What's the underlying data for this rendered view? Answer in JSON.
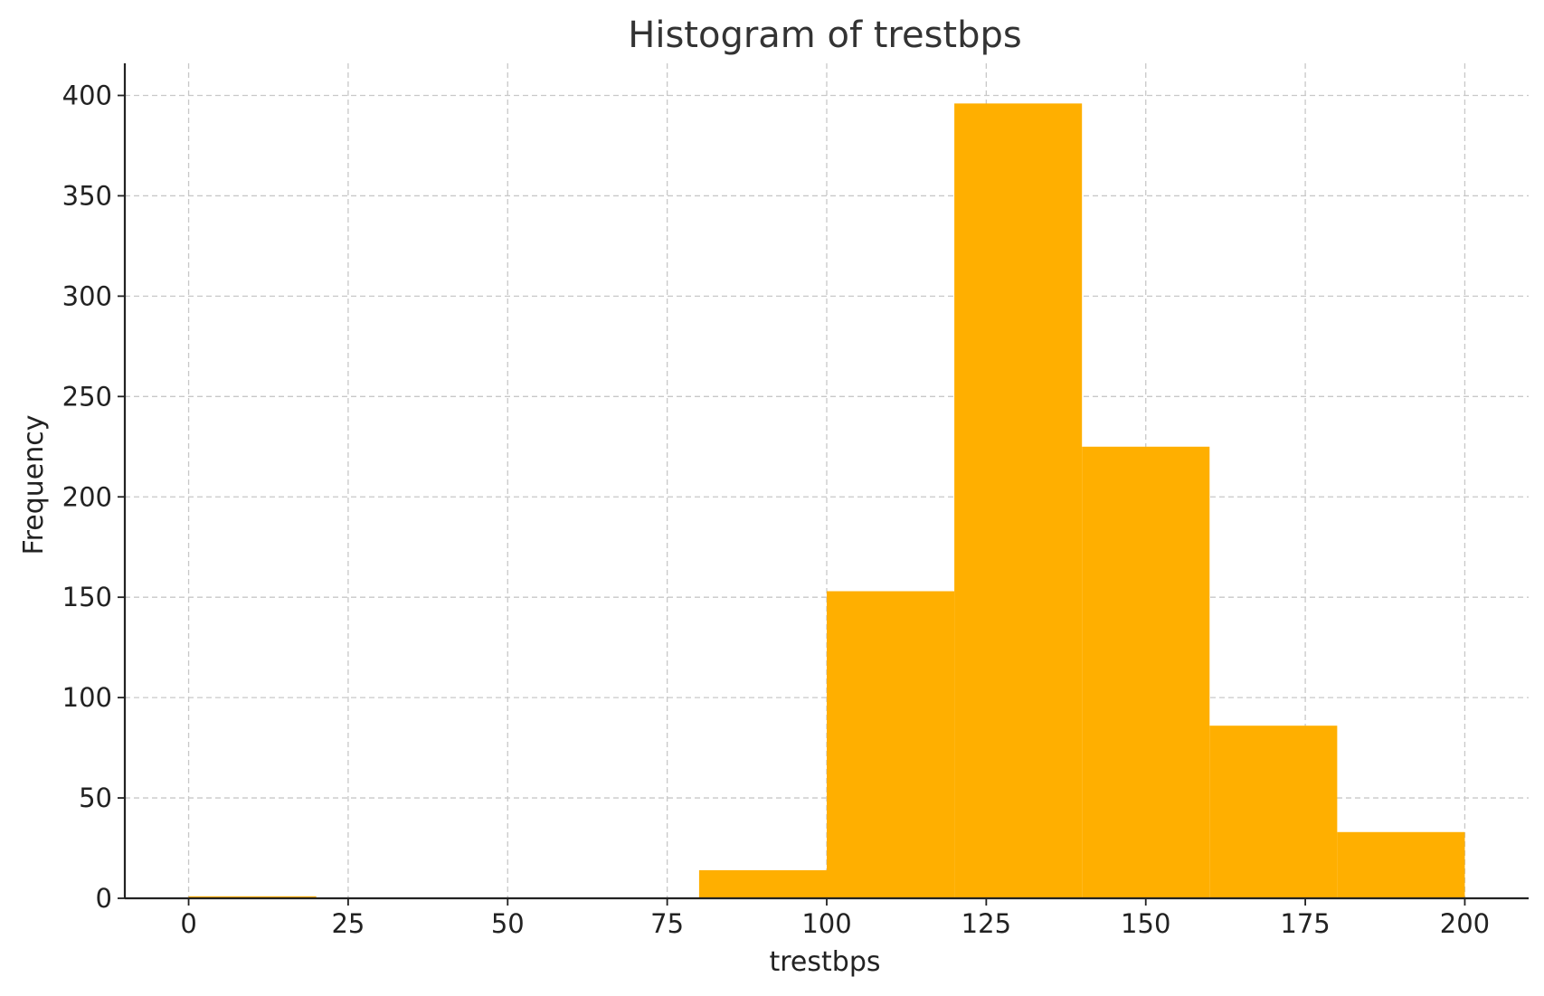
{
  "chart_data": {
    "type": "bar",
    "title": "Histogram of trestbps",
    "xlabel": "trestbps",
    "ylabel": "Frequency",
    "bins": [
      {
        "start": 0,
        "end": 20,
        "count": 1
      },
      {
        "start": 20,
        "end": 40,
        "count": 0
      },
      {
        "start": 40,
        "end": 60,
        "count": 0
      },
      {
        "start": 60,
        "end": 80,
        "count": 0
      },
      {
        "start": 80,
        "end": 100,
        "count": 14
      },
      {
        "start": 100,
        "end": 120,
        "count": 153
      },
      {
        "start": 120,
        "end": 140,
        "count": 396
      },
      {
        "start": 140,
        "end": 160,
        "count": 225
      },
      {
        "start": 160,
        "end": 180,
        "count": 86
      },
      {
        "start": 180,
        "end": 200,
        "count": 33
      }
    ],
    "xlim": [
      -10,
      210
    ],
    "ylim": [
      0,
      416
    ],
    "xticks": [
      0,
      25,
      50,
      75,
      100,
      125,
      150,
      175,
      200
    ],
    "yticks": [
      0,
      50,
      100,
      150,
      200,
      250,
      300,
      350,
      400
    ],
    "grid": true,
    "bar_color": "#FFAF00"
  }
}
